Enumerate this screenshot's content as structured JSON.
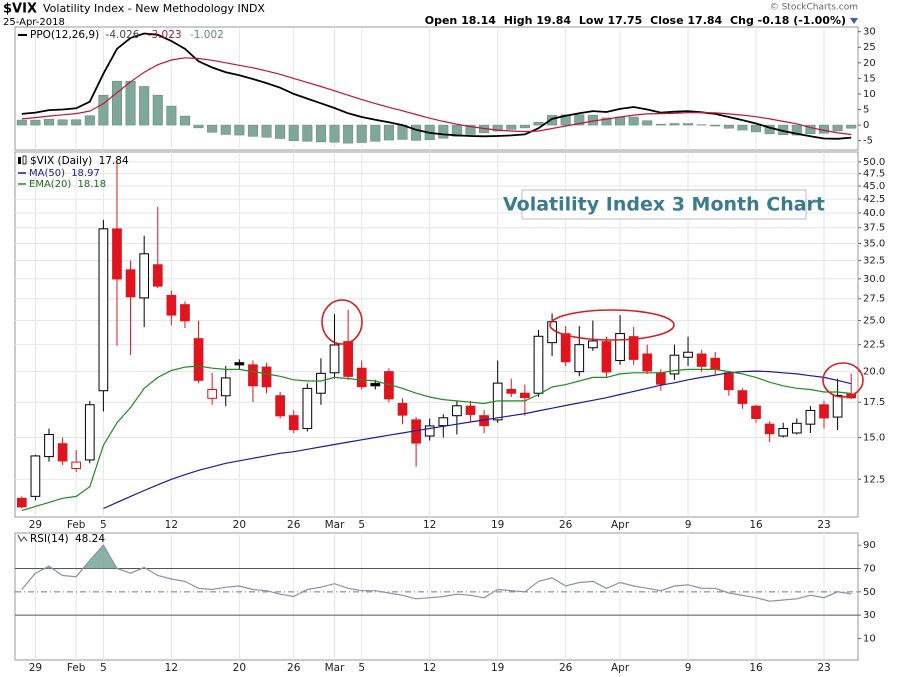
{
  "header": {
    "symbol": "$VIX",
    "name": "Volatility Index - New Methodology INDX",
    "date": "25-Apr-2018",
    "credit": "© StockCharts.com",
    "quote": [
      {
        "label": "Open",
        "value": 18.14
      },
      {
        "label": "High",
        "value": 19.84
      },
      {
        "label": "Low",
        "value": 17.75
      },
      {
        "label": "Close",
        "value": 17.84
      },
      {
        "label": "Chg",
        "value": "-0.18 (-1.00%)"
      }
    ]
  },
  "chart_data": [
    {
      "type": "line",
      "title": "PPO(12,26,9)",
      "series": [
        {
          "color": "#000000",
          "values": [
            3.6,
            4.0,
            4.8,
            5.0,
            5.4,
            7.5,
            16.5,
            24.5,
            28.0,
            29.4,
            29.0,
            27.0,
            24.5,
            20.5,
            18.5,
            17.0,
            16.0,
            14.8,
            13.5,
            12.0,
            10.0,
            8.5,
            7.0,
            5.5,
            3.8,
            2.6,
            1.7,
            0.9,
            0.0,
            -1.5,
            -2.5,
            -3.0,
            -3.3,
            -3.5,
            -3.6,
            -3.5,
            -3.3,
            -3.0,
            -1.0,
            2.0,
            3.0,
            3.8,
            4.5,
            4.2,
            5.2,
            5.8,
            5.0,
            4.0,
            4.3,
            4.5,
            4.1,
            3.6,
            2.6,
            1.6,
            0.5,
            -0.8,
            -1.9,
            -2.8,
            -3.6,
            -4.3,
            -4.4,
            -4.026
          ]
        },
        {
          "color": "#c0143c",
          "values": [
            2.0,
            2.4,
            2.9,
            3.3,
            3.7,
            4.5,
            6.9,
            10.4,
            13.9,
            17.0,
            19.4,
            20.9,
            21.6,
            21.4,
            20.8,
            20.0,
            19.2,
            18.4,
            17.4,
            16.3,
            15.0,
            13.7,
            12.4,
            11.0,
            9.6,
            8.2,
            6.9,
            5.7,
            4.6,
            3.4,
            2.2,
            1.2,
            0.3,
            -0.5,
            -1.1,
            -1.6,
            -1.9,
            -2.1,
            -1.9,
            -1.1,
            -0.3,
            0.5,
            1.3,
            1.9,
            2.6,
            3.2,
            3.6,
            3.7,
            3.8,
            4.0,
            4.0,
            3.9,
            3.6,
            3.2,
            2.7,
            2.0,
            1.2,
            0.4,
            -0.8,
            -1.7,
            -2.5,
            -3.023
          ]
        },
        {
          "style": "bar",
          "color": "#7fa89a",
          "values": [
            1.6,
            1.6,
            1.9,
            1.7,
            1.7,
            3.0,
            9.6,
            14.1,
            14.1,
            12.4,
            9.6,
            6.1,
            2.9,
            -0.9,
            -2.3,
            -3.0,
            -3.2,
            -3.6,
            -3.9,
            -4.3,
            -5.0,
            -5.2,
            -5.4,
            -5.5,
            -5.8,
            -5.6,
            -5.2,
            -4.8,
            -4.6,
            -4.9,
            -4.7,
            -4.2,
            -3.6,
            -3.0,
            -2.5,
            -1.9,
            -1.4,
            -0.9,
            0.9,
            3.1,
            3.3,
            3.3,
            3.2,
            2.3,
            2.6,
            2.6,
            1.4,
            0.3,
            0.5,
            0.5,
            0.1,
            -0.3,
            -1.0,
            -1.6,
            -2.2,
            -2.8,
            -3.1,
            -3.2,
            -2.8,
            -2.6,
            -1.9,
            -1.002
          ]
        }
      ],
      "ylim": [
        -8,
        31.5
      ],
      "yticks": [
        30,
        25,
        20,
        15,
        10,
        5,
        0,
        -5
      ]
    },
    {
      "type": "candlestick",
      "title": "$VIX (Daily)",
      "annotation": "Volatility Index 3 Month Chart",
      "categories": [
        null,
        "29",
        null,
        null,
        "Feb",
        null,
        "5",
        null,
        null,
        null,
        null,
        "12",
        null,
        null,
        null,
        null,
        "20",
        null,
        null,
        null,
        "26",
        null,
        null,
        "Mar",
        null,
        "5",
        null,
        null,
        null,
        null,
        "12",
        null,
        null,
        null,
        null,
        "19",
        null,
        null,
        null,
        null,
        "26",
        null,
        null,
        null,
        "Apr",
        null,
        null,
        null,
        null,
        "9",
        null,
        null,
        null,
        null,
        "16",
        null,
        null,
        null,
        null,
        "23",
        null,
        null
      ],
      "open": [
        11.5,
        11.6,
        13.8,
        14.6,
        13.1,
        13.6,
        18.4,
        37.3,
        31.2,
        27.6,
        31.9,
        27.9,
        26.8,
        23.1,
        17.8,
        18.0,
        20.8,
        20.6,
        20.4,
        18.0,
        16.5,
        15.6,
        18.2,
        19.9,
        22.8,
        20.3,
        19.0,
        20.0,
        17.4,
        16.2,
        15.1,
        15.8,
        16.5,
        17.2,
        16.5,
        16.2,
        18.5,
        18.2,
        18.2,
        22.7,
        23.6,
        20.0,
        22.2,
        22.8,
        21.0,
        23.3,
        21.6,
        19.9,
        19.8,
        21.3,
        21.6,
        21.2,
        19.9,
        18.4,
        17.2,
        15.9,
        15.1,
        15.3,
        15.9,
        17.3,
        16.4,
        18.14
      ],
      "high": [
        11.6,
        13.9,
        15.6,
        15.0,
        14.2,
        17.6,
        38.8,
        50.3,
        32.5,
        36.2,
        41.06,
        28.5,
        27.2,
        25.0,
        19.9,
        20.5,
        21.1,
        21.0,
        20.8,
        18.3,
        16.9,
        19.0,
        21.2,
        25.7,
        26.2,
        21.0,
        19.3,
        20.3,
        17.8,
        16.4,
        16.3,
        16.6,
        17.6,
        17.6,
        16.9,
        21.0,
        19.4,
        18.9,
        24.0,
        25.8,
        24.4,
        24.4,
        25.0,
        23.3,
        25.6,
        24.3,
        22.5,
        20.2,
        22.5,
        23.3,
        22.0,
        21.8,
        20.0,
        18.6,
        17.3,
        16.1,
        16.0,
        16.3,
        17.2,
        17.6,
        19.4,
        19.84
      ],
      "low": [
        11.0,
        11.4,
        13.5,
        13.3,
        12.9,
        13.4,
        16.8,
        22.4,
        21.5,
        24.3,
        28.8,
        24.5,
        24.2,
        19.0,
        17.3,
        17.2,
        20.2,
        17.5,
        18.2,
        16.3,
        15.3,
        15.4,
        17.3,
        19.4,
        19.3,
        18.5,
        18.5,
        17.5,
        15.9,
        13.2,
        14.8,
        15.0,
        15.2,
        16.1,
        15.3,
        16.0,
        17.9,
        16.5,
        17.9,
        21.4,
        20.5,
        19.6,
        21.9,
        19.5,
        20.6,
        20.6,
        19.8,
        18.4,
        19.3,
        20.5,
        20.0,
        19.7,
        18.0,
        17.0,
        16.0,
        14.7,
        15.0,
        15.2,
        15.3,
        15.6,
        15.5,
        17.75
      ],
      "close": [
        11.08,
        13.84,
        15.2,
        13.54,
        13.47,
        17.31,
        37.32,
        29.98,
        27.73,
        33.46,
        29.06,
        25.61,
        24.97,
        19.26,
        18.5,
        19.46,
        20.6,
        18.8,
        18.72,
        16.49,
        15.52,
        18.59,
        19.85,
        22.47,
        19.59,
        18.73,
        18.8,
        17.76,
        16.54,
        14.64,
        15.78,
        16.35,
        17.23,
        16.59,
        15.8,
        19.02,
        18.2,
        17.86,
        23.34,
        24.87,
        20.88,
        22.5,
        22.87,
        19.97,
        23.62,
        21.1,
        20.06,
        18.94,
        21.49,
        21.77,
        20.47,
        20.24,
        18.49,
        17.41,
        16.3,
        15.25,
        15.6,
        15.96,
        16.88,
        16.34,
        18.02,
        17.84
      ],
      "up_color": "#000000",
      "down_color": "#e0141e",
      "series": [
        {
          "name": "MA(50)",
          "color": "#1c1c96",
          "values": [
            null,
            null,
            null,
            null,
            null,
            null,
            11.0,
            11.3,
            11.6,
            11.9,
            12.2,
            12.5,
            12.75,
            13.0,
            13.2,
            13.4,
            13.55,
            13.7,
            13.85,
            14.0,
            14.1,
            14.25,
            14.4,
            14.55,
            14.7,
            14.85,
            15.0,
            15.15,
            15.3,
            15.45,
            15.6,
            15.75,
            15.9,
            16.05,
            16.2,
            16.35,
            16.5,
            16.65,
            16.85,
            17.05,
            17.25,
            17.45,
            17.65,
            17.85,
            18.1,
            18.35,
            18.6,
            18.85,
            19.05,
            19.3,
            19.5,
            19.7,
            19.9,
            20.0,
            20.05,
            20.0,
            19.9,
            19.8,
            19.65,
            19.5,
            19.25,
            18.97
          ]
        },
        {
          "name": "EMA(20)",
          "color": "#228b22",
          "values": [
            10.9,
            11.1,
            11.3,
            11.5,
            11.6,
            12.1,
            14.5,
            16.0,
            17.1,
            18.6,
            19.5,
            20.1,
            20.4,
            20.5,
            20.3,
            20.2,
            20.2,
            20.0,
            19.8,
            19.6,
            19.3,
            19.2,
            19.2,
            19.5,
            19.4,
            19.3,
            19.2,
            18.9,
            18.6,
            18.2,
            17.9,
            17.7,
            17.6,
            17.5,
            17.4,
            17.6,
            17.6,
            17.6,
            18.1,
            18.7,
            18.9,
            19.2,
            19.5,
            19.5,
            19.8,
            19.9,
            19.9,
            19.9,
            20.1,
            20.2,
            20.2,
            20.2,
            20.0,
            19.8,
            19.5,
            19.1,
            18.8,
            18.6,
            18.5,
            18.3,
            18.3,
            18.18
          ]
        }
      ],
      "ylim": [
        10.6,
        52.2
      ],
      "log": true,
      "grid": true,
      "yticks": [
        {
          "value": 50,
          "label": "50.0"
        },
        47.5,
        {
          "value": 45,
          "label": "45.0"
        },
        42.5,
        {
          "value": 40,
          "label": "40.0"
        },
        37.5,
        {
          "value": 35,
          "label": "35.0"
        },
        32.5,
        {
          "value": 30,
          "label": "30.0"
        },
        27.5,
        {
          "value": 25,
          "label": "25.0"
        },
        22.5,
        {
          "value": 20,
          "label": "20.0"
        },
        17.5,
        {
          "value": 15,
          "label": "15.0"
        },
        12.5
      ]
    },
    {
      "type": "line",
      "title": "RSI(14)",
      "categories": [
        null,
        "29",
        null,
        null,
        "Feb",
        null,
        "5",
        null,
        null,
        null,
        null,
        "12",
        null,
        null,
        null,
        null,
        "20",
        null,
        null,
        null,
        "26",
        null,
        null,
        "Mar",
        null,
        "5",
        null,
        null,
        null,
        null,
        "12",
        null,
        null,
        null,
        null,
        "19",
        null,
        null,
        null,
        null,
        "26",
        null,
        null,
        null,
        "Apr",
        null,
        null,
        null,
        null,
        "9",
        null,
        null,
        null,
        null,
        "16",
        null,
        null,
        null,
        null,
        "23",
        null,
        null
      ],
      "series": [
        {
          "color": "#8a8fb0",
          "values": [
            52,
            66,
            72,
            64,
            63,
            77,
            90,
            70,
            66,
            71,
            64,
            61,
            59,
            53,
            52,
            54,
            55,
            52,
            51,
            48,
            46,
            52,
            54,
            57,
            53,
            51,
            51,
            49,
            47,
            44,
            45,
            46,
            48,
            47,
            45,
            52,
            51,
            50,
            59,
            62,
            55,
            58,
            59,
            53,
            58,
            55,
            53,
            51,
            55,
            56,
            53,
            53,
            49,
            47,
            45,
            42,
            43,
            44,
            47,
            45,
            50,
            48.24
          ]
        }
      ],
      "levels": [
        70,
        30
      ],
      "midline": 50,
      "fill_color": "#6f9f92",
      "ylim": [
        -8.5,
        100.5
      ],
      "yticks": [
        90,
        70,
        50,
        30,
        10
      ]
    }
  ]
}
